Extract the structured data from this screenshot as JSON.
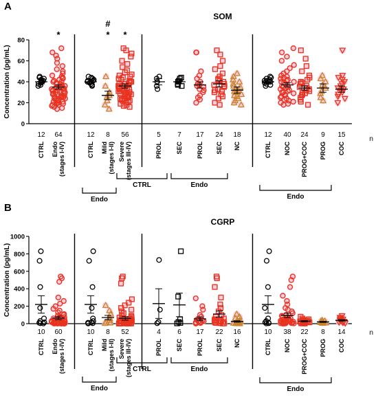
{
  "colors": {
    "ctrl": "#000000",
    "endo": "#e8321e",
    "prog": "#c9842a",
    "halo": "#f7c6d6",
    "axis": "#000000"
  },
  "n_label": "n",
  "chart_data": [
    {
      "type": "scatter",
      "panel_letter": "A",
      "title": "SOM",
      "ylabel": "Concentration (pg/mL)",
      "ylim": [
        0,
        80
      ],
      "yticks": [
        0,
        20,
        40,
        60,
        80
      ],
      "brackets": [
        {
          "label": "Endo",
          "from": 2,
          "to": 3
        },
        {
          "label": "CTRL",
          "from": 4,
          "to": 5
        },
        {
          "label": "Endo",
          "from": 6,
          "to": 8
        },
        {
          "label": "Endo",
          "from": 10,
          "to": 13
        }
      ],
      "groups": [
        {
          "label": "CTRL",
          "n": "12",
          "marker": "circle",
          "color": "#000000",
          "halo": false,
          "mean": 40,
          "sem": 2,
          "values": [
            42,
            40,
            38,
            44,
            39,
            41,
            36,
            43,
            40,
            37,
            45,
            41
          ]
        },
        {
          "label": "Endo\n(stages I-IV)",
          "n": "64",
          "marker": "circle",
          "color": "#e8321e",
          "halo": true,
          "mean": 35,
          "sem": 2,
          "sig": [
            "*"
          ],
          "values": [
            72,
            68,
            65,
            62,
            58,
            55,
            52,
            50,
            48,
            46,
            45,
            44,
            43,
            42,
            41,
            40,
            40,
            39,
            38,
            38,
            37,
            36,
            36,
            35,
            35,
            34,
            34,
            33,
            33,
            32,
            32,
            31,
            31,
            30,
            30,
            30,
            29,
            29,
            28,
            28,
            27,
            27,
            26,
            26,
            25,
            25,
            24,
            24,
            23,
            23,
            22,
            22,
            21,
            21,
            20,
            20,
            19,
            19,
            18,
            18,
            17,
            16,
            15,
            14
          ]
        },
        {
          "label": "CTRL",
          "n": "12",
          "marker": "circle",
          "color": "#000000",
          "halo": false,
          "mean": 40,
          "sem": 2,
          "values": [
            42,
            40,
            38,
            44,
            39,
            41,
            36,
            43,
            40,
            37,
            45,
            41
          ]
        },
        {
          "label": "Mild\n(stages I-II)",
          "n": "8",
          "marker": "triangle",
          "color": "#c9842a",
          "halo": true,
          "mean": 27,
          "sem": 4,
          "sig": [
            "#",
            "*"
          ],
          "values": [
            45,
            36,
            30,
            27,
            25,
            22,
            18,
            14
          ]
        },
        {
          "label": "Severe\n(stages III-IV)",
          "n": "56",
          "marker": "square",
          "color": "#e8321e",
          "halo": true,
          "mean": 36,
          "sem": 2,
          "sig": [
            "*"
          ],
          "values": [
            72,
            70,
            67,
            64,
            60,
            57,
            54,
            51,
            49,
            47,
            46,
            45,
            44,
            43,
            42,
            41,
            40,
            40,
            39,
            38,
            38,
            37,
            36,
            36,
            35,
            35,
            34,
            34,
            33,
            33,
            32,
            32,
            31,
            31,
            30,
            30,
            29,
            29,
            28,
            28,
            27,
            27,
            26,
            26,
            25,
            24,
            24,
            23,
            22,
            22,
            21,
            20,
            19,
            18,
            17,
            16
          ]
        },
        {
          "label": "PROL",
          "n": "5",
          "marker": "circle",
          "color": "#000000",
          "halo": false,
          "mean": 40,
          "sem": 3,
          "values": [
            45,
            43,
            40,
            36,
            33
          ]
        },
        {
          "label": "SEC",
          "n": "7",
          "marker": "square",
          "color": "#000000",
          "halo": false,
          "mean": 40,
          "sem": 2,
          "values": [
            44,
            43,
            41,
            40,
            38,
            37,
            36
          ]
        },
        {
          "label": "PROL",
          "n": "17",
          "marker": "circle",
          "color": "#e8321e",
          "halo": true,
          "mean": 37,
          "sem": 3,
          "values": [
            68,
            68,
            50,
            46,
            43,
            40,
            38,
            37,
            36,
            35,
            33,
            32,
            30,
            27,
            25,
            23,
            20
          ]
        },
        {
          "label": "SEC",
          "n": "24",
          "marker": "square",
          "color": "#e8321e",
          "halo": true,
          "mean": 38,
          "sem": 3,
          "values": [
            70,
            66,
            60,
            55,
            52,
            48,
            45,
            43,
            42,
            41,
            40,
            38,
            37,
            36,
            35,
            33,
            32,
            31,
            30,
            28,
            26,
            24,
            20,
            18
          ]
        },
        {
          "label": "NC",
          "n": "18",
          "marker": "triangle",
          "color": "#c9842a",
          "halo": true,
          "mean": 32,
          "sem": 3,
          "values": [
            48,
            45,
            42,
            40,
            38,
            36,
            35,
            33,
            32,
            31,
            30,
            28,
            27,
            26,
            24,
            22,
            20,
            18
          ]
        },
        {
          "label": "CTRL",
          "n": "12",
          "marker": "circle",
          "color": "#000000",
          "halo": false,
          "mean": 40,
          "sem": 2,
          "values": [
            42,
            40,
            38,
            44,
            39,
            41,
            36,
            43,
            40,
            37,
            45,
            41
          ]
        },
        {
          "label": "NOC",
          "n": "40",
          "marker": "circle",
          "color": "#e8321e",
          "halo": true,
          "mean": 37,
          "sem": 2,
          "values": [
            72,
            68,
            64,
            60,
            56,
            53,
            50,
            48,
            46,
            45,
            44,
            43,
            42,
            41,
            40,
            40,
            39,
            38,
            37,
            36,
            35,
            35,
            34,
            33,
            32,
            31,
            30,
            30,
            29,
            28,
            27,
            26,
            25,
            24,
            23,
            22,
            21,
            20,
            19,
            18
          ]
        },
        {
          "label": "PROG+COC",
          "n": "24",
          "marker": "square",
          "color": "#e8321e",
          "halo": true,
          "mean": 34,
          "sem": 2,
          "values": [
            70,
            62,
            55,
            50,
            46,
            44,
            42,
            40,
            39,
            38,
            36,
            35,
            34,
            33,
            32,
            31,
            30,
            29,
            28,
            27,
            25,
            23,
            21,
            18
          ]
        },
        {
          "label": "PROG",
          "n": "9",
          "marker": "triangle",
          "color": "#c9842a",
          "halo": true,
          "mean": 34,
          "sem": 4,
          "values": [
            46,
            43,
            40,
            37,
            34,
            31,
            29,
            25,
            22
          ]
        },
        {
          "label": "COC",
          "n": "15",
          "marker": "triangle-down",
          "color": "#e8321e",
          "halo": true,
          "mean": 33,
          "sem": 3,
          "values": [
            70,
            46,
            44,
            42,
            40,
            38,
            36,
            34,
            33,
            32,
            30,
            28,
            26,
            24,
            20
          ]
        }
      ]
    },
    {
      "type": "scatter",
      "panel_letter": "B",
      "title": "CGRP",
      "ylabel": "Concentration (pg/mL)",
      "ylim": [
        0,
        1000
      ],
      "yticks": [
        0,
        200,
        400,
        600,
        800,
        1000
      ],
      "brackets": [
        {
          "label": "Endo",
          "from": 2,
          "to": 3
        },
        {
          "label": "CTRL",
          "from": 4,
          "to": 5
        },
        {
          "label": "Endo",
          "from": 6,
          "to": 8
        },
        {
          "label": "Endo",
          "from": 10,
          "to": 13
        }
      ],
      "groups": [
        {
          "label": "CTRL",
          "n": "10",
          "marker": "circle",
          "color": "#000000",
          "halo": false,
          "mean": 220,
          "sem": 100,
          "values": [
            830,
            720,
            420,
            180,
            60,
            30,
            15,
            10,
            5,
            2
          ]
        },
        {
          "label": "Endo\n(stages I-IV)",
          "n": "60",
          "marker": "circle",
          "color": "#e8321e",
          "halo": true,
          "mean": 65,
          "sem": 20,
          "values": [
            540,
            520,
            480,
            300,
            260,
            230,
            200,
            170,
            150,
            130,
            110,
            100,
            90,
            80,
            75,
            70,
            65,
            60,
            55,
            50,
            48,
            45,
            42,
            40,
            38,
            35,
            32,
            30,
            28,
            26,
            25,
            24,
            22,
            20,
            18,
            16,
            15,
            14,
            13,
            12,
            11,
            10,
            9,
            8,
            7,
            6,
            5,
            5,
            4,
            4,
            3,
            3,
            2,
            2,
            2,
            1,
            1,
            1,
            1,
            1
          ]
        },
        {
          "label": "CTRL",
          "n": "10",
          "marker": "circle",
          "color": "#000000",
          "halo": false,
          "mean": 220,
          "sem": 100,
          "values": [
            830,
            720,
            420,
            180,
            60,
            30,
            15,
            10,
            5,
            2
          ]
        },
        {
          "label": "Mild\n(stages I-II)",
          "n": "8",
          "marker": "triangle",
          "color": "#c9842a",
          "halo": true,
          "mean": 70,
          "sem": 25,
          "values": [
            210,
            150,
            110,
            60,
            40,
            20,
            10,
            5
          ]
        },
        {
          "label": "Severe\n(stages III-IV)",
          "n": "52",
          "marker": "square",
          "color": "#e8321e",
          "halo": true,
          "mean": 60,
          "sem": 20,
          "values": [
            540,
            520,
            460,
            280,
            240,
            210,
            180,
            160,
            140,
            120,
            100,
            90,
            80,
            70,
            65,
            60,
            55,
            50,
            45,
            42,
            40,
            38,
            35,
            32,
            30,
            28,
            25,
            22,
            20,
            18,
            16,
            14,
            12,
            11,
            10,
            9,
            8,
            7,
            6,
            5,
            5,
            4,
            4,
            3,
            3,
            2,
            2,
            2,
            1,
            1,
            1,
            1
          ]
        },
        {
          "label": "PROL",
          "n": "4",
          "marker": "circle",
          "color": "#000000",
          "halo": false,
          "mean": 230,
          "sem": 170,
          "values": [
            730,
            160,
            20,
            5
          ]
        },
        {
          "label": "SEC",
          "n": "6",
          "marker": "square",
          "color": "#000000",
          "halo": false,
          "mean": 215,
          "sem": 135,
          "values": [
            830,
            310,
            50,
            20,
            8,
            3
          ]
        },
        {
          "label": "PROL",
          "n": "17",
          "marker": "circle",
          "color": "#e8321e",
          "halo": true,
          "mean": 55,
          "sem": 20,
          "values": [
            290,
            200,
            160,
            100,
            80,
            60,
            45,
            35,
            30,
            25,
            20,
            15,
            10,
            8,
            5,
            3,
            2
          ]
        },
        {
          "label": "SEC",
          "n": "22",
          "marker": "square",
          "color": "#e8321e",
          "halo": true,
          "mean": 110,
          "sem": 35,
          "values": [
            540,
            520,
            420,
            300,
            220,
            180,
            140,
            100,
            80,
            60,
            50,
            40,
            35,
            30,
            25,
            20,
            15,
            10,
            8,
            5,
            3,
            2
          ]
        },
        {
          "label": "NC",
          "n": "16",
          "marker": "triangle",
          "color": "#c9842a",
          "halo": true,
          "mean": 25,
          "sem": 8,
          "values": [
            110,
            80,
            60,
            40,
            30,
            25,
            20,
            18,
            15,
            12,
            10,
            8,
            6,
            5,
            3,
            2
          ]
        },
        {
          "label": "CTRL",
          "n": "10",
          "marker": "circle",
          "color": "#000000",
          "halo": false,
          "mean": 220,
          "sem": 100,
          "values": [
            830,
            720,
            420,
            180,
            60,
            30,
            15,
            10,
            5,
            2
          ]
        },
        {
          "label": "NOC",
          "n": "38",
          "marker": "circle",
          "color": "#e8321e",
          "halo": true,
          "mean": 95,
          "sem": 25,
          "values": [
            540,
            500,
            420,
            320,
            260,
            220,
            180,
            160,
            140,
            120,
            100,
            90,
            80,
            70,
            60,
            55,
            50,
            45,
            40,
            35,
            30,
            28,
            25,
            22,
            20,
            18,
            15,
            12,
            10,
            8,
            6,
            5,
            4,
            3,
            2,
            2,
            1,
            1
          ]
        },
        {
          "label": "PROG+COC",
          "n": "22",
          "marker": "square",
          "color": "#e8321e",
          "halo": true,
          "mean": 28,
          "sem": 6,
          "values": [
            80,
            60,
            50,
            45,
            40,
            35,
            32,
            30,
            28,
            25,
            22,
            20,
            18,
            15,
            12,
            10,
            8,
            6,
            5,
            4,
            3,
            2
          ]
        },
        {
          "label": "PROG",
          "n": "8",
          "marker": "triangle",
          "color": "#c9842a",
          "halo": true,
          "mean": 20,
          "sem": 6,
          "values": [
            40,
            32,
            28,
            22,
            18,
            14,
            10,
            6
          ]
        },
        {
          "label": "COC",
          "n": "14",
          "marker": "triangle-down",
          "color": "#e8321e",
          "halo": true,
          "mean": 38,
          "sem": 8,
          "values": [
            90,
            70,
            60,
            50,
            45,
            40,
            38,
            35,
            30,
            25,
            20,
            15,
            10,
            5
          ]
        }
      ]
    }
  ]
}
